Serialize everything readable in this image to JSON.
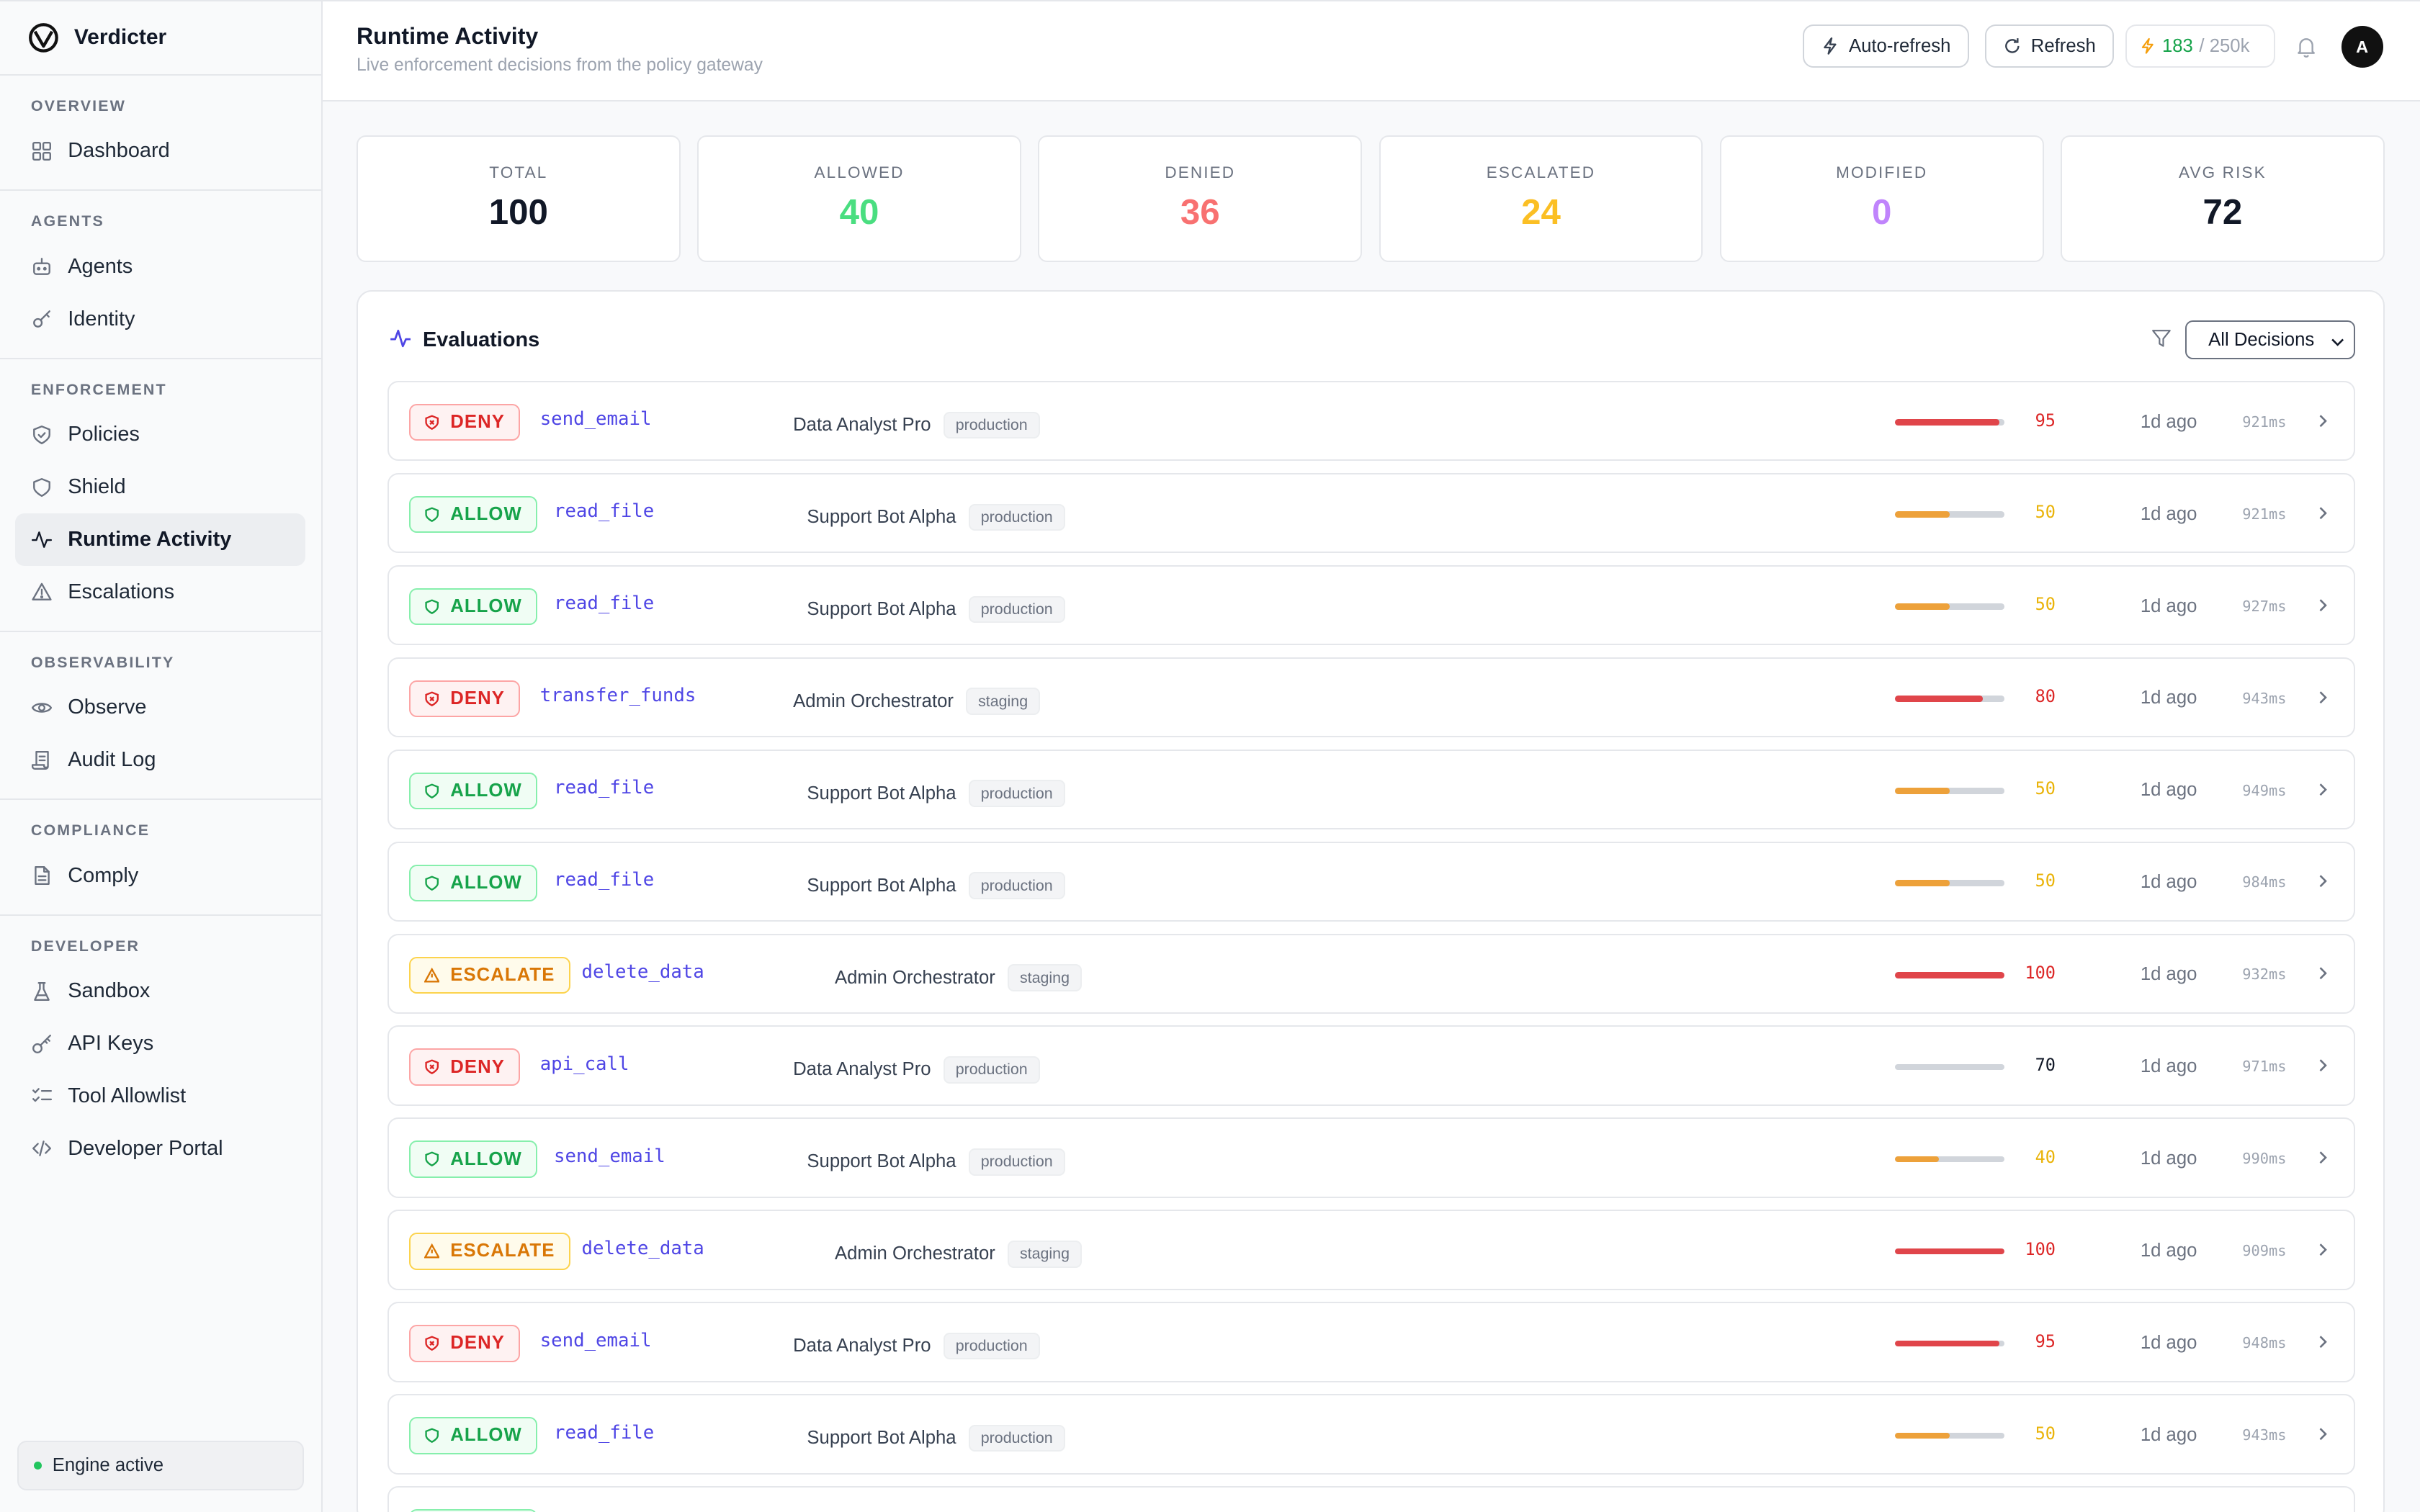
{
  "app": {
    "name": "Verdicter",
    "logo_icon": "verdicter-logo-icon"
  },
  "sidebar": {
    "sections": [
      {
        "title": "OVERVIEW",
        "items": [
          {
            "label": "Dashboard",
            "icon": "grid-icon"
          }
        ]
      },
      {
        "title": "AGENTS",
        "items": [
          {
            "label": "Agents",
            "icon": "bot-icon"
          },
          {
            "label": "Identity",
            "icon": "key-icon"
          }
        ]
      },
      {
        "title": "ENFORCEMENT",
        "items": [
          {
            "label": "Policies",
            "icon": "shield-check-icon"
          },
          {
            "label": "Shield",
            "icon": "shield-icon"
          },
          {
            "label": "Runtime Activity",
            "icon": "activity-icon",
            "active": true
          },
          {
            "label": "Escalations",
            "icon": "alert-triangle-icon"
          }
        ]
      },
      {
        "title": "OBSERVABILITY",
        "items": [
          {
            "label": "Observe",
            "icon": "eye-icon"
          },
          {
            "label": "Audit Log",
            "icon": "scroll-icon"
          }
        ]
      },
      {
        "title": "COMPLIANCE",
        "items": [
          {
            "label": "Comply",
            "icon": "file-text-icon"
          }
        ]
      },
      {
        "title": "DEVELOPER",
        "items": [
          {
            "label": "Sandbox",
            "icon": "flask-icon"
          },
          {
            "label": "API Keys",
            "icon": "key-round-icon"
          },
          {
            "label": "Tool Allowlist",
            "icon": "list-checks-icon"
          },
          {
            "label": "Developer Portal",
            "icon": "code-icon"
          }
        ]
      }
    ],
    "engine_status": "Engine active"
  },
  "header": {
    "title": "Runtime Activity",
    "subtitle": "Live enforcement decisions from the policy gateway",
    "auto_refresh_label": "Auto-refresh",
    "refresh_label": "Refresh",
    "usage_used": "183",
    "usage_limit": "/ 250k",
    "avatar_initial": "A"
  },
  "stats": [
    {
      "label": "TOTAL",
      "value": "100",
      "color": "#111827"
    },
    {
      "label": "ALLOWED",
      "value": "40",
      "color": "#4ade80"
    },
    {
      "label": "DENIED",
      "value": "36",
      "color": "#f87171"
    },
    {
      "label": "ESCALATED",
      "value": "24",
      "color": "#fbbf24"
    },
    {
      "label": "MODIFIED",
      "value": "0",
      "color": "#c084fc"
    },
    {
      "label": "AVG RISK",
      "value": "72",
      "color": "#111827"
    }
  ],
  "evaluations": {
    "title": "Evaluations",
    "filter_selected": "All Decisions",
    "rows": [
      {
        "decision": "DENY",
        "tool": "send_email",
        "agent": "Data Analyst Pro",
        "env": "production",
        "risk": 95,
        "time": "1d ago",
        "duration": "921ms"
      },
      {
        "decision": "ALLOW",
        "tool": "read_file",
        "agent": "Support Bot Alpha",
        "env": "production",
        "risk": 50,
        "time": "1d ago",
        "duration": "921ms"
      },
      {
        "decision": "ALLOW",
        "tool": "read_file",
        "agent": "Support Bot Alpha",
        "env": "production",
        "risk": 50,
        "time": "1d ago",
        "duration": "927ms"
      },
      {
        "decision": "DENY",
        "tool": "transfer_funds",
        "agent": "Admin Orchestrator",
        "env": "staging",
        "risk": 80,
        "time": "1d ago",
        "duration": "943ms"
      },
      {
        "decision": "ALLOW",
        "tool": "read_file",
        "agent": "Support Bot Alpha",
        "env": "production",
        "risk": 50,
        "time": "1d ago",
        "duration": "949ms"
      },
      {
        "decision": "ALLOW",
        "tool": "read_file",
        "agent": "Support Bot Alpha",
        "env": "production",
        "risk": 50,
        "time": "1d ago",
        "duration": "984ms"
      },
      {
        "decision": "ESCALATE",
        "tool": "delete_data",
        "agent": "Admin Orchestrator",
        "env": "staging",
        "risk": 100,
        "time": "1d ago",
        "duration": "932ms"
      },
      {
        "decision": "DENY",
        "tool": "api_call",
        "agent": "Data Analyst Pro",
        "env": "production",
        "risk": 70,
        "time": "1d ago",
        "duration": "971ms"
      },
      {
        "decision": "ALLOW",
        "tool": "send_email",
        "agent": "Support Bot Alpha",
        "env": "production",
        "risk": 40,
        "time": "1d ago",
        "duration": "990ms"
      },
      {
        "decision": "ESCALATE",
        "tool": "delete_data",
        "agent": "Admin Orchestrator",
        "env": "staging",
        "risk": 100,
        "time": "1d ago",
        "duration": "909ms"
      },
      {
        "decision": "DENY",
        "tool": "send_email",
        "agent": "Data Analyst Pro",
        "env": "production",
        "risk": 95,
        "time": "1d ago",
        "duration": "948ms"
      },
      {
        "decision": "ALLOW",
        "tool": "read_file",
        "agent": "Support Bot Alpha",
        "env": "production",
        "risk": 50,
        "time": "1d ago",
        "duration": "943ms"
      },
      {
        "decision": "ALLOW",
        "tool": "",
        "agent": "",
        "env": "",
        "risk": null,
        "time": "",
        "duration": ""
      }
    ]
  },
  "colors": {
    "deny": "#dc2626",
    "allow": "#16a34a",
    "escalate": "#d97706",
    "risk_high": "#e0454a",
    "risk_medium": "#eda13a",
    "accent": "#4f46e5"
  }
}
